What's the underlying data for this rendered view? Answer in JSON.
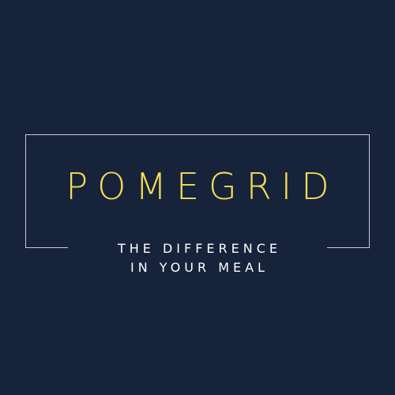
{
  "brand": {
    "name": "POMEGRID",
    "tagline_line1": "THE DIFFERENCE",
    "tagline_line2": "IN YOUR MEAL"
  },
  "colors": {
    "background": "#17223b",
    "brand_text": "#f4de53",
    "tagline_text": "#ffffff",
    "frame": "#c9ccd4"
  }
}
